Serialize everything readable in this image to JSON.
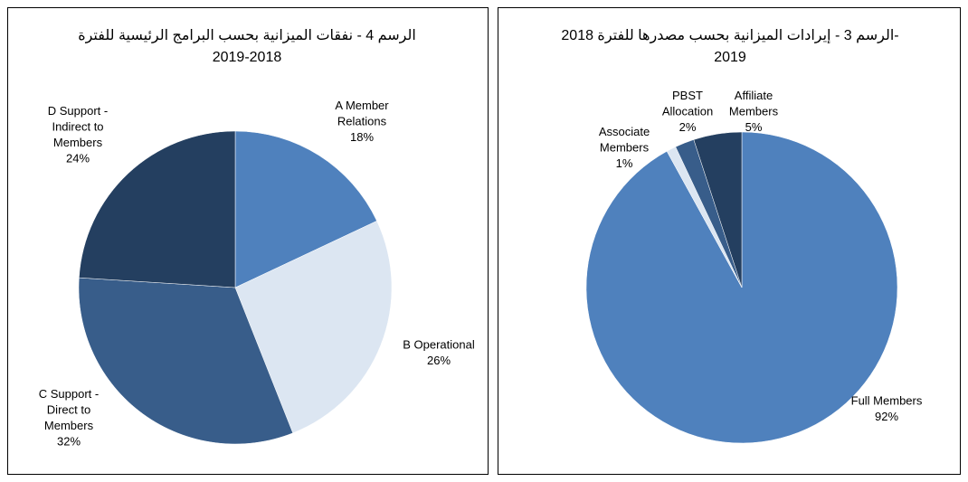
{
  "chart_data": [
    {
      "type": "pie",
      "title": [
        "الرسم 4 - نفقات الميزانية بحسب البرامج الرئيسية للفترة",
        "2019-2018"
      ],
      "categories": [
        [
          "A Member",
          "Relations"
        ],
        [
          "B Operational"
        ],
        [
          "C Support -",
          "Direct to",
          "Members"
        ],
        [
          "D Support -",
          "Indirect to",
          "Members"
        ]
      ],
      "values": [
        18,
        26,
        32,
        24
      ],
      "value_labels": [
        "18%",
        "26%",
        "32%",
        "24%"
      ],
      "colors": [
        "#4f81bd",
        "#dce6f2",
        "#385d8a",
        "#243f60"
      ]
    },
    {
      "type": "pie",
      "title": [
        "الرسم 3 - إيرادات الميزانية بحسب مصدرها للفترة 2018-",
        "2019"
      ],
      "categories": [
        [
          "Full Members"
        ],
        [
          "Associate",
          "Members"
        ],
        [
          "PBST",
          "Allocation"
        ],
        [
          "Affiliate",
          "Members"
        ]
      ],
      "values": [
        92,
        1,
        2,
        5
      ],
      "value_labels": [
        "92%",
        "1%",
        "2%",
        "5%"
      ],
      "colors": [
        "#4f81bd",
        "#dce6f2",
        "#385d8a",
        "#243f60"
      ]
    }
  ]
}
